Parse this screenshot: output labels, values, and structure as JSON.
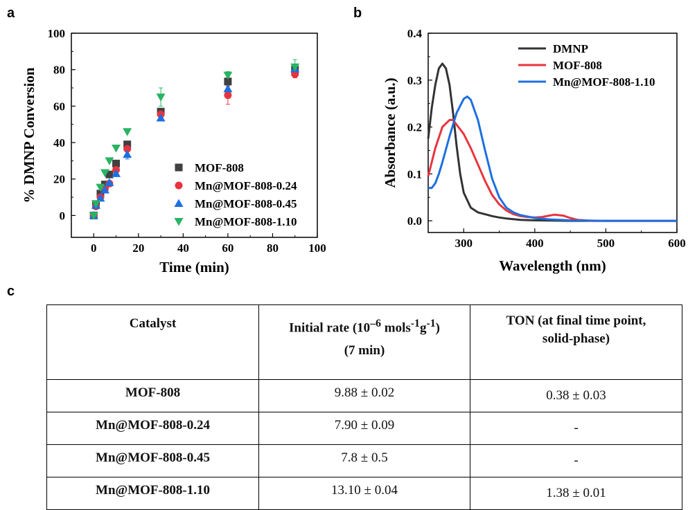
{
  "panel_labels": {
    "a": "a",
    "b": "b",
    "c": "c"
  },
  "chart_data": [
    {
      "type": "scatter",
      "xlabel": "Time (min)",
      "ylabel": "% DMNP Conversion",
      "xlim": [
        -10,
        100
      ],
      "ylim": [
        -12,
        100
      ],
      "x_ticks": [
        0,
        20,
        40,
        60,
        80,
        100
      ],
      "y_ticks": [
        0,
        20,
        40,
        60,
        80,
        100
      ],
      "legend_position": "lower-right",
      "series": [
        {
          "name": "MOF-808",
          "color": "#404040",
          "marker": "square",
          "x": [
            0,
            1,
            3,
            5,
            7,
            10,
            15,
            30,
            60,
            90
          ],
          "y": [
            0,
            6,
            12,
            17,
            22.5,
            28.5,
            39,
            57,
            73.5,
            80
          ],
          "err": [
            0,
            0,
            0,
            0,
            0,
            0,
            0,
            1.5,
            2,
            2
          ]
        },
        {
          "name": "Mn@MOF-808-0.24",
          "color": "#e8343e",
          "marker": "circle",
          "x": [
            0,
            1,
            3,
            5,
            7,
            10,
            15,
            30,
            60,
            90
          ],
          "y": [
            0,
            5,
            10,
            14.5,
            17.5,
            25,
            36.5,
            55.5,
            66,
            77.5
          ],
          "err": [
            0,
            0,
            0,
            0,
            0,
            0,
            0,
            0,
            5,
            2
          ]
        },
        {
          "name": "Mn@MOF-808-0.45",
          "color": "#1d6fe0",
          "marker": "triangle-up",
          "x": [
            0,
            1,
            3,
            5,
            7,
            10,
            15,
            30,
            60,
            90
          ],
          "y": [
            0,
            5.5,
            9.5,
            14,
            18,
            23,
            33.5,
            53.5,
            69.5,
            80.5
          ],
          "err": [
            0,
            0,
            0,
            0,
            0,
            0,
            2.5,
            1,
            2,
            2
          ]
        },
        {
          "name": "Mn@MOF-808-1.10",
          "color": "#28b463",
          "marker": "triangle-down",
          "x": [
            0,
            1,
            3,
            5,
            7,
            10,
            15,
            30,
            60,
            90
          ],
          "y": [
            0,
            6.5,
            15.5,
            23.5,
            30,
            37,
            46,
            65,
            77,
            81.5
          ],
          "err": [
            0,
            0,
            0,
            0,
            0,
            0,
            0,
            5,
            2,
            4
          ]
        }
      ]
    },
    {
      "type": "line",
      "xlabel": "Wavelength (nm)",
      "ylabel": "Absorbance (a.u.)",
      "xlim": [
        250,
        600
      ],
      "ylim": [
        -0.025,
        0.4
      ],
      "x_ticks": [
        300,
        400,
        500,
        600
      ],
      "y_ticks": [
        0.0,
        0.1,
        0.2,
        0.3,
        0.4
      ],
      "y_tick_labels": [
        "0.0",
        "0.1",
        "0.2",
        "0.3",
        "0.4"
      ],
      "legend_position": "top-right",
      "series": [
        {
          "name": "DMNP",
          "color": "#333333",
          "x": [
            250,
            255,
            260,
            265,
            270,
            275,
            280,
            285,
            290,
            295,
            300,
            310,
            320,
            330,
            340,
            350,
            360,
            380,
            400,
            450,
            500,
            600
          ],
          "y": [
            0.175,
            0.24,
            0.29,
            0.325,
            0.335,
            0.325,
            0.29,
            0.23,
            0.16,
            0.1,
            0.06,
            0.028,
            0.018,
            0.014,
            0.01,
            0.007,
            0.005,
            0.002,
            0.001,
            0,
            0,
            0
          ]
        },
        {
          "name": "MOF-808",
          "color": "#e8343e",
          "x": [
            250,
            260,
            270,
            280,
            285,
            290,
            300,
            310,
            320,
            330,
            340,
            350,
            360,
            370,
            380,
            390,
            400,
            410,
            420,
            428,
            440,
            450,
            460,
            470,
            480,
            500,
            600
          ],
          "y": [
            0.095,
            0.155,
            0.2,
            0.215,
            0.215,
            0.205,
            0.185,
            0.155,
            0.12,
            0.085,
            0.055,
            0.035,
            0.022,
            0.014,
            0.01,
            0.008,
            0.007,
            0.008,
            0.011,
            0.013,
            0.011,
            0.006,
            0.002,
            0.001,
            0,
            0,
            0
          ]
        },
        {
          "name": "Mn@MOF-808-1.10",
          "color": "#1d6fe0",
          "x": [
            250,
            255,
            260,
            265,
            270,
            280,
            290,
            300,
            305,
            310,
            320,
            330,
            340,
            350,
            360,
            370,
            380,
            400,
            420,
            450,
            500,
            600
          ],
          "y": [
            0.07,
            0.07,
            0.08,
            0.1,
            0.125,
            0.18,
            0.23,
            0.26,
            0.265,
            0.258,
            0.215,
            0.15,
            0.09,
            0.05,
            0.028,
            0.018,
            0.012,
            0.006,
            0.003,
            0.001,
            0,
            0
          ]
        }
      ]
    }
  ],
  "table": {
    "headers": [
      "Catalyst",
      "Initial rate (10",
      "–6",
      " mols",
      "-1",
      "g",
      "-1",
      ")",
      "(7 min)",
      "TON (at final time point,",
      "solid-phase)"
    ],
    "rows": [
      {
        "catalyst": "MOF-808",
        "rate": "9.88 ± 0.02",
        "ton": "0.38 ± 0.03"
      },
      {
        "catalyst": "Mn@MOF-808-0.24",
        "rate": "7.90 ± 0.09",
        "ton": "-"
      },
      {
        "catalyst": "Mn@MOF-808-0.45",
        "rate": "7.8 ± 0.5",
        "ton": "-"
      },
      {
        "catalyst": "Mn@MOF-808-1.10",
        "rate": "13.10 ± 0.04",
        "ton": "1.38 ± 0.01"
      }
    ]
  }
}
